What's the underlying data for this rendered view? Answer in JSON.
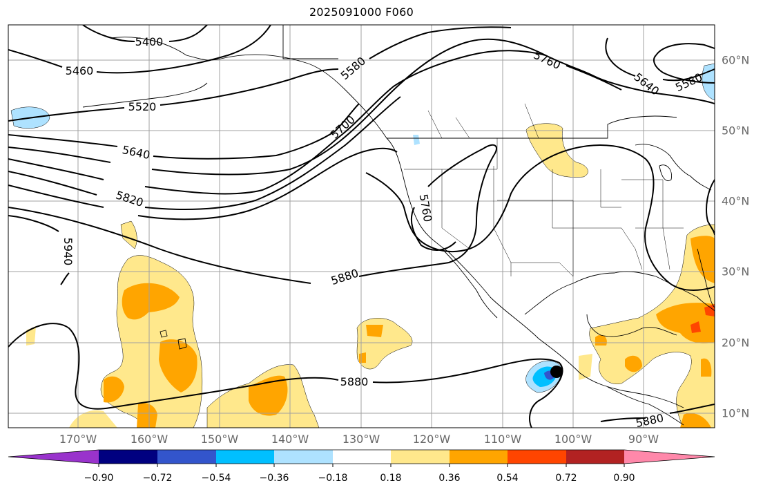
{
  "title": "2025091000 F060",
  "lon_labels": [
    "170°W",
    "160°W",
    "150°W",
    "140°W",
    "130°W",
    "120°W",
    "110°W",
    "100°W",
    "90°W"
  ],
  "lat_labels": [
    "60°N",
    "50°N",
    "40°N",
    "30°N",
    "20°N",
    "10°N"
  ],
  "contour_labels": [
    "5400",
    "5460",
    "5520",
    "5580",
    "5640",
    "5700",
    "5760",
    "5820",
    "5880",
    "5940"
  ],
  "colorbar": {
    "ticks": [
      "−0.90",
      "−0.72",
      "−0.54",
      "−0.36",
      "−0.18",
      "0.18",
      "0.36",
      "0.54",
      "0.72",
      "0.90"
    ],
    "colors": [
      "#9933cc",
      "#000080",
      "#3355cc",
      "#00bfff",
      "#aee2ff",
      "#ffffff",
      "#ffe88c",
      "#ffa500",
      "#ff4500",
      "#b22222",
      "#ff88aa"
    ]
  },
  "marker": "storm-center-dot"
}
